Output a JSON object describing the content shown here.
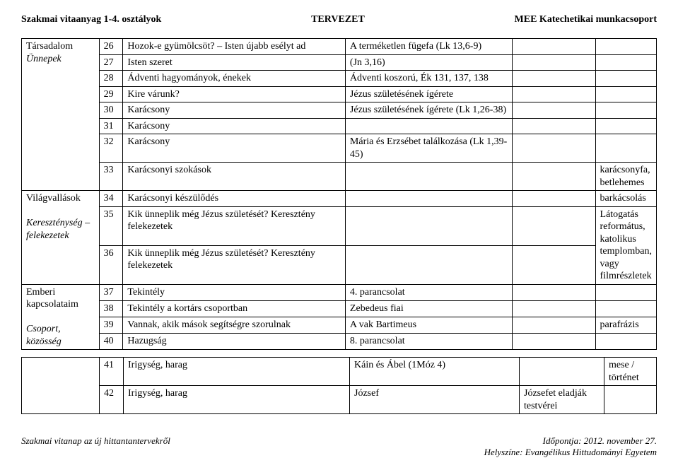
{
  "header": {
    "left": "Szakmai vitaanyag 1-4. osztályok",
    "center": "TERVEZET",
    "right": "MEE Katechetikai munkacsoport"
  },
  "table1": {
    "rows": [
      {
        "cat": "",
        "num": "26",
        "topic": "Hozok-e gyümölcsöt? – Isten újabb esélyt ad",
        "bible": "A terméketlen fügefa (Lk 13,6-9)",
        "c4": "",
        "c5": ""
      },
      {
        "cat": "",
        "num": "27",
        "topic": "Isten szeret",
        "bible": "(Jn 3,16)",
        "c4": "",
        "c5": ""
      },
      {
        "cat": "",
        "num": "28",
        "topic": "Ádventi hagyományok, énekek",
        "bible": "Ádventi koszorú, Ék 131, 137, 138",
        "c4": "",
        "c5": ""
      },
      {
        "cat": "",
        "num": "29",
        "topic": "Kire várunk?",
        "bible": "Jézus születésének ígérete",
        "c4": "",
        "c5": ""
      },
      {
        "cat": "",
        "num": "30",
        "topic": "Karácsony",
        "bible": "Jézus születésének ígérete (Lk 1,26-38)",
        "c4": "",
        "c5": ""
      },
      {
        "cat": "Társadalom",
        "catItalic": "Ünnepek",
        "num": "31",
        "topic": "Karácsony",
        "bible": "",
        "c4": "",
        "c5": ""
      },
      {
        "cat": "",
        "num": "32",
        "topic": "Karácsony",
        "bible": "Mária és Erzsébet találkozása (Lk 1,39-45)",
        "c4": "",
        "c5": ""
      },
      {
        "cat": "",
        "num": "33",
        "topic": "Karácsonyi szokások",
        "bible": "",
        "c4": "",
        "c5": "karácsonyfa, betlehemes"
      },
      {
        "cat": "",
        "num": "34",
        "topic": "Karácsonyi készülődés",
        "bible": "",
        "c4": "",
        "c5": "barkácsolás"
      },
      {
        "cat": "Világvallások",
        "num": "35",
        "topic": "Kik ünneplik még Jézus születését? Keresztény felekezetek",
        "bible": "",
        "c4": "",
        "c5": "Látogatás református, katolikus templomban, vagy filmrészletek"
      },
      {
        "cat": "",
        "catItalicPre": "Kereszténység – felekezetek",
        "num": "36",
        "topic": "Kik ünneplik még Jézus születését? Keresztény felekezetek",
        "bible": "",
        "c4": "",
        "c5": ""
      },
      {
        "cat": "Emberi kapcsolataim",
        "num": "37",
        "topic": "Tekintély",
        "bible": "4. parancsolat",
        "c4": "",
        "c5": ""
      },
      {
        "cat": "",
        "catItalicPre": "Csoport, közösség",
        "num": "38",
        "topic": "Tekintély a kortárs csoportban",
        "bible": "Zebedeus fiai",
        "c4": "",
        "c5": ""
      },
      {
        "cat": "",
        "num": "39",
        "topic": "Vannak, akik mások segítségre szorulnak",
        "bible": "A vak Bartimeus",
        "c4": "",
        "c5": "parafrázis"
      },
      {
        "cat": "",
        "num": "40",
        "topic": "Hazugság",
        "bible": "8. parancsolat",
        "c4": "",
        "c5": ""
      }
    ]
  },
  "table2": {
    "rows": [
      {
        "cat": "",
        "num": "41",
        "topic": "Irigység, harag",
        "bible": "Káin és Ábel (1Móz 4)",
        "c4": "",
        "c5": "mese / történet"
      },
      {
        "cat": "",
        "num": "42",
        "topic": "Irigység, harag",
        "bible": "József",
        "c4": "Józsefet eladják testvérei",
        "c5": ""
      }
    ]
  },
  "footer": {
    "left": "Szakmai vitanap az új hittantantervekről",
    "right1": "Időpontja: 2012. november 27.",
    "right2": "Helyszíne: Evangélikus Hittudományi Egyetem"
  }
}
